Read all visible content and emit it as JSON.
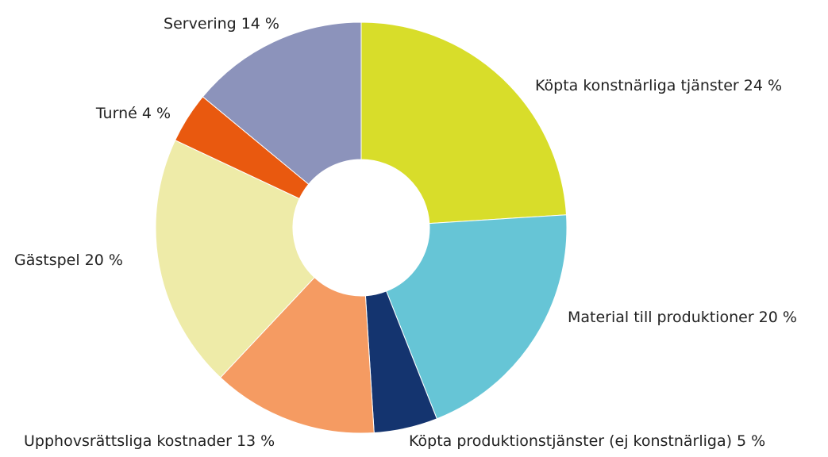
{
  "chart_data": {
    "type": "pie",
    "categories": [
      "Köpta konstnärliga tjänster",
      "Material till produktioner",
      "Köpta produktionstjänster (ej konstnärliga)",
      "Upphovsrättsliga kostnader",
      "Gästspel",
      "Turné",
      "Servering"
    ],
    "values": [
      24,
      20,
      5,
      13,
      20,
      4,
      14
    ],
    "value_labels": [
      "24 %",
      "20 %",
      "5 %",
      "13 %",
      "20 %",
      "4 %",
      "14 %"
    ],
    "colors": [
      "#d8dd2a",
      "#66c5d6",
      "#14346f",
      "#f59b62",
      "#eeeba8",
      "#e9590f",
      "#8c93bb"
    ],
    "donut": true
  }
}
